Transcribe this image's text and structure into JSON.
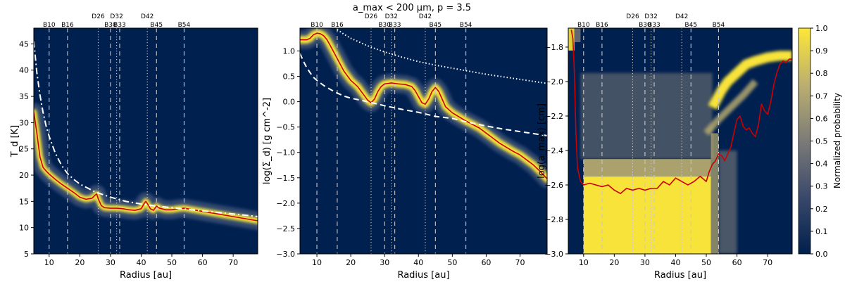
{
  "figure_title": "a_max < 200 μm, p = 3.5",
  "colorbar": {
    "label": "Normalized probability",
    "ticks": [
      "0.0",
      "0.1",
      "0.2",
      "0.3",
      "0.4",
      "0.5",
      "0.6",
      "0.7",
      "0.8",
      "0.9",
      "1.0"
    ],
    "colors": [
      "#00204c",
      "#39486b",
      "#7c7b78",
      "#bcaf6f",
      "#fde737"
    ]
  },
  "features": [
    {
      "label": "B10",
      "r": 10,
      "style": "dashed"
    },
    {
      "label": "B16",
      "r": 16,
      "style": "dashed"
    },
    {
      "label": "D26",
      "r": 26,
      "style": "dotted"
    },
    {
      "label": "B30",
      "r": 30,
      "style": "dashed"
    },
    {
      "label": "D32",
      "r": 32,
      "style": "dotted"
    },
    {
      "label": "B33",
      "r": 33,
      "style": "dashed"
    },
    {
      "label": "D42",
      "r": 42,
      "style": "dotted"
    },
    {
      "label": "B45",
      "r": 45,
      "style": "dashed"
    },
    {
      "label": "B54",
      "r": 54,
      "style": "dashed"
    }
  ],
  "chart_data": [
    {
      "type": "line",
      "panel": "left",
      "xlabel": "Radius [au]",
      "ylabel": "T_d [K]",
      "xlim": [
        5,
        78
      ],
      "ylim": [
        5,
        48
      ],
      "xticks": [
        10,
        20,
        30,
        40,
        50,
        60,
        70
      ],
      "yticks": [
        5,
        10,
        15,
        20,
        25,
        30,
        35,
        40,
        45
      ],
      "series": [
        {
          "name": "best fit",
          "color": "#cc0000",
          "x": [
            5,
            6,
            7,
            8,
            9,
            10,
            12,
            14,
            16,
            18,
            20,
            22,
            24,
            25,
            25.5,
            26,
            27,
            28,
            30,
            32,
            34,
            36,
            38,
            40,
            41,
            41.5,
            42,
            43,
            44,
            45,
            46,
            48,
            50,
            52,
            54,
            56,
            58,
            60,
            62,
            64,
            66,
            68,
            70,
            72,
            74,
            76,
            78
          ],
          "y": [
            32,
            28,
            23.5,
            21.5,
            20.8,
            20.2,
            19.2,
            18.3,
            17.5,
            16.7,
            15.8,
            15.4,
            15.6,
            16.2,
            16.4,
            15.5,
            14.2,
            13.8,
            13.7,
            13.7,
            13.6,
            13.4,
            13.3,
            13.6,
            14.6,
            15.0,
            14.6,
            13.6,
            13.3,
            14.1,
            13.7,
            13.4,
            13.4,
            13.6,
            13.7,
            13.5,
            13.3,
            13.1,
            12.9,
            12.7,
            12.5,
            12.3,
            12.1,
            11.9,
            11.7,
            11.5,
            11.3
          ]
        },
        {
          "name": "model",
          "color": "#ffffff",
          "style": "dashdot",
          "x": [
            5,
            6,
            7,
            8,
            9,
            10,
            12,
            14,
            16,
            18,
            20,
            25,
            30,
            35,
            40,
            45,
            50,
            55,
            60,
            65,
            70,
            75,
            78
          ],
          "y": [
            45.5,
            39.5,
            35.3,
            32.0,
            29.4,
            27.4,
            24.2,
            21.9,
            20.3,
            19.2,
            18.3,
            16.8,
            15.8,
            15.0,
            14.5,
            14.1,
            13.8,
            13.5,
            13.2,
            12.9,
            12.6,
            12.3,
            12.1
          ]
        }
      ]
    },
    {
      "type": "line",
      "panel": "middle",
      "xlabel": "Radius [au]",
      "ylabel": "log(Σ_d) [g cm^-2]",
      "xlim": [
        5,
        78
      ],
      "ylim": [
        -3.0,
        1.45
      ],
      "xticks": [
        10,
        20,
        30,
        40,
        50,
        60,
        70
      ],
      "yticks": [
        -3.0,
        -2.5,
        -2.0,
        -1.5,
        -1.0,
        -0.5,
        0.0,
        0.5,
        1.0
      ],
      "ytick_labels": [
        "−3.0",
        "−2.5",
        "−2.0",
        "−1.5",
        "−1.0",
        "−0.5",
        "0.0",
        "0.5",
        "1.0"
      ],
      "series": [
        {
          "name": "best fit",
          "color": "#cc0000",
          "x": [
            5,
            6,
            7,
            8,
            9,
            10,
            11,
            12,
            13,
            14,
            16,
            18,
            20,
            22,
            24,
            25,
            26,
            27,
            28,
            29,
            30,
            31,
            32,
            33,
            34,
            36,
            38,
            39,
            40,
            41,
            42,
            43,
            44,
            45,
            46,
            47,
            48,
            50,
            52,
            54,
            56,
            58,
            60,
            62,
            64,
            66,
            68,
            70,
            72,
            74,
            76,
            78
          ],
          "y": [
            1.22,
            1.22,
            1.22,
            1.25,
            1.32,
            1.35,
            1.34,
            1.3,
            1.22,
            1.1,
            0.85,
            0.6,
            0.42,
            0.3,
            0.12,
            0.03,
            -0.02,
            0.05,
            0.2,
            0.3,
            0.35,
            0.36,
            0.37,
            0.36,
            0.35,
            0.34,
            0.3,
            0.22,
            0.1,
            -0.02,
            -0.05,
            0.05,
            0.2,
            0.28,
            0.2,
            0.05,
            -0.1,
            -0.22,
            -0.3,
            -0.38,
            -0.45,
            -0.52,
            -0.62,
            -0.72,
            -0.82,
            -0.9,
            -0.98,
            -1.05,
            -1.15,
            -1.25,
            -1.38,
            -1.52
          ]
        },
        {
          "name": "model (dashed)",
          "color": "#ffffff",
          "style": "dashed",
          "x": [
            5,
            6,
            7,
            8,
            9,
            10,
            12,
            14,
            16,
            18,
            20,
            25,
            30,
            35,
            40,
            45,
            50,
            55,
            60,
            65,
            70,
            75,
            78
          ],
          "y": [
            0.95,
            0.8,
            0.67,
            0.57,
            0.48,
            0.42,
            0.32,
            0.24,
            0.17,
            0.11,
            0.07,
            0.0,
            -0.08,
            -0.15,
            -0.21,
            -0.29,
            -0.33,
            -0.41,
            -0.48,
            -0.54,
            -0.59,
            -0.64,
            -0.67
          ]
        },
        {
          "name": "model (dotted)",
          "color": "#ffffff",
          "style": "dotted",
          "x": [
            16,
            18,
            20,
            25,
            30,
            35,
            40,
            45,
            50,
            55,
            60,
            65,
            70,
            75,
            78
          ],
          "y": [
            1.42,
            1.33,
            1.25,
            1.1,
            0.98,
            0.88,
            0.79,
            0.72,
            0.66,
            0.6,
            0.54,
            0.49,
            0.44,
            0.39,
            0.36
          ]
        }
      ]
    },
    {
      "type": "line",
      "panel": "right",
      "xlabel": "Radius [au]",
      "ylabel": "log(a_max) [cm]",
      "xlim": [
        5,
        78
      ],
      "ylim": [
        -3.0,
        -1.69
      ],
      "xticks": [
        10,
        20,
        30,
        40,
        50,
        60,
        70
      ],
      "yticks": [
        -3.0,
        -2.8,
        -2.6,
        -2.4,
        -2.2,
        -2.0,
        -1.8
      ],
      "ytick_labels": [
        "−3.0",
        "−2.8",
        "−2.6",
        "−2.4",
        "−2.2",
        "−2.0",
        "−1.8"
      ],
      "series": [
        {
          "name": "best fit",
          "color": "#cc0000",
          "x": [
            6,
            6.5,
            7,
            7.5,
            8,
            9,
            10,
            12,
            14,
            16,
            18,
            20,
            22,
            24,
            26,
            28,
            30,
            32,
            34,
            36,
            38,
            40,
            42,
            44,
            45,
            46,
            48,
            50,
            51,
            52,
            53,
            54,
            55,
            56,
            57,
            58,
            59,
            60,
            61,
            62,
            63,
            64,
            65,
            66,
            67,
            68,
            69,
            70,
            71,
            72,
            73,
            74,
            75,
            76,
            77,
            78
          ],
          "y": [
            -1.7,
            -1.75,
            -1.95,
            -2.3,
            -2.5,
            -2.58,
            -2.6,
            -2.59,
            -2.6,
            -2.61,
            -2.6,
            -2.63,
            -2.65,
            -2.62,
            -2.63,
            -2.62,
            -2.63,
            -2.62,
            -2.62,
            -2.58,
            -2.6,
            -2.56,
            -2.58,
            -2.6,
            -2.59,
            -2.58,
            -2.55,
            -2.58,
            -2.52,
            -2.48,
            -2.46,
            -2.42,
            -2.43,
            -2.46,
            -2.42,
            -2.38,
            -2.3,
            -2.22,
            -2.2,
            -2.26,
            -2.28,
            -2.27,
            -2.3,
            -2.32,
            -2.25,
            -2.13,
            -2.17,
            -2.19,
            -2.12,
            -2.02,
            -1.95,
            -1.9,
            -1.88,
            -1.89,
            -1.87,
            -1.87
          ]
        }
      ]
    }
  ]
}
